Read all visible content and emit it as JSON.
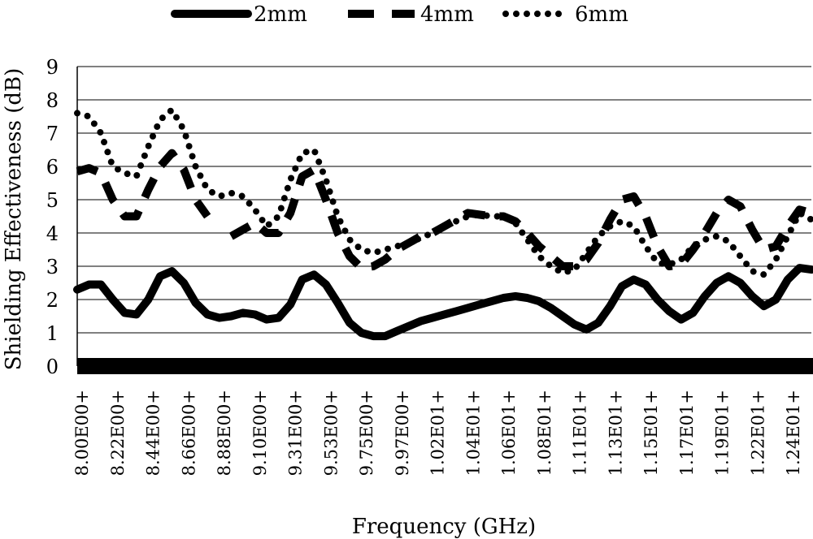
{
  "chart_data": {
    "type": "line",
    "xlabel": "Frequency (GHz)",
    "ylabel": "Shielding Effectiveness (dB)",
    "ylim": [
      0,
      9
    ],
    "yticks": [
      0,
      1,
      2,
      3,
      4,
      5,
      6,
      7,
      8,
      9
    ],
    "grid": "horizontal",
    "legend_position": "top",
    "x_tick_labels": [
      "8.00E00+",
      "8.22E00+",
      "8.44E00+",
      "8.66E00+",
      "8.88E00+",
      "9.10E00+",
      "9.31E00+",
      "9.53E00+",
      "9.75E00+",
      "9.97E00+",
      "1.02E01+",
      "1.04E01+",
      "1.06E01+",
      "1.08E01+",
      "1.11E01+",
      "1.13E01+",
      "1.15E01+",
      "1.17E01+",
      "1.19E01+",
      "1.22E01+",
      "1.24E01+"
    ],
    "series": [
      {
        "name": "2mm",
        "style": "solid",
        "color": "#000000",
        "values": [
          2.3,
          2.45,
          2.45,
          2.0,
          1.6,
          1.55,
          2.0,
          2.7,
          2.85,
          2.5,
          1.9,
          1.55,
          1.45,
          1.5,
          1.6,
          1.55,
          1.4,
          1.45,
          1.85,
          2.6,
          2.75,
          2.45,
          1.9,
          1.3,
          1.0,
          0.9,
          0.9,
          1.05,
          1.2,
          1.35,
          1.45,
          1.55,
          1.65,
          1.75,
          1.85,
          1.95,
          2.05,
          2.1,
          2.05,
          1.95,
          1.75,
          1.5,
          1.25,
          1.1,
          1.3,
          1.8,
          2.4,
          2.6,
          2.45,
          2.0,
          1.65,
          1.4,
          1.6,
          2.1,
          2.5,
          2.7,
          2.5,
          2.1,
          1.8,
          2.0,
          2.6,
          2.95,
          2.9
        ]
      },
      {
        "name": "4mm",
        "style": "dash",
        "color": "#000000",
        "values": [
          5.85,
          5.95,
          5.8,
          5.0,
          4.5,
          4.5,
          5.3,
          6.0,
          6.4,
          5.9,
          5.0,
          4.5,
          null,
          3.9,
          4.1,
          4.3,
          4.0,
          4.0,
          4.6,
          5.7,
          5.9,
          5.0,
          4.0,
          3.3,
          2.95,
          3.0,
          3.2,
          3.5,
          3.7,
          3.9,
          4.0,
          4.2,
          4.4,
          4.6,
          4.55,
          4.5,
          4.5,
          4.35,
          4.0,
          3.6,
          3.3,
          3.0,
          3.0,
          3.2,
          3.7,
          4.4,
          5.0,
          5.1,
          4.5,
          3.6,
          3.0,
          3.05,
          3.5,
          4.0,
          4.6,
          5.0,
          4.8,
          4.1,
          3.5,
          3.6,
          4.2,
          4.7,
          4.6
        ]
      },
      {
        "name": "6mm",
        "style": "dot",
        "color": "#000000",
        "values": [
          7.6,
          7.5,
          7.0,
          6.0,
          5.8,
          5.7,
          6.6,
          7.4,
          7.7,
          7.1,
          6.0,
          5.3,
          5.1,
          5.2,
          5.1,
          4.7,
          4.2,
          4.5,
          5.6,
          6.4,
          6.5,
          5.6,
          4.5,
          3.8,
          3.5,
          3.4,
          3.5,
          3.6,
          3.7,
          3.85,
          4.0,
          4.2,
          4.35,
          4.5,
          4.55,
          4.5,
          4.5,
          4.3,
          3.8,
          3.3,
          3.0,
          2.8,
          2.9,
          3.4,
          3.9,
          4.2,
          4.35,
          4.2,
          3.6,
          3.1,
          3.05,
          3.2,
          3.6,
          3.8,
          3.9,
          3.75,
          3.3,
          2.85,
          2.75,
          3.2,
          3.9,
          4.6,
          4.4
        ]
      }
    ]
  }
}
